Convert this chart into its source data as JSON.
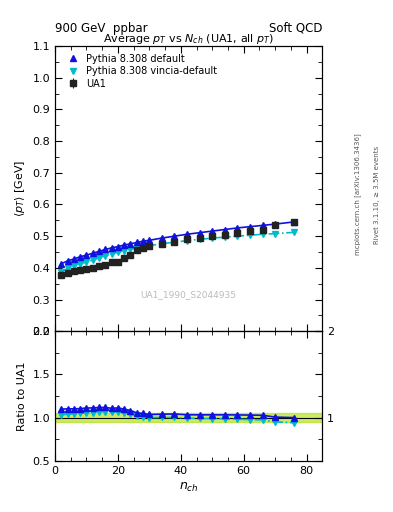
{
  "title_top_left": "900 GeV  ppbar",
  "title_top_right": "Soft QCD",
  "main_title": "Average p_{T} vs N_{ch} (UA1, all p_{T})",
  "ylabel_main": "⟨p_{T}⟩ [GeV]",
  "ylabel_ratio": "Ratio to UA1",
  "xlabel": "n_{ch}",
  "right_label_top": "Rivet 3.1.10, ≥ 3.5M events",
  "right_label_bot": "mcplots.cern.ch [arXiv:1306.3436]",
  "watermark": "UA1_1990_S2044935",
  "ua1_x": [
    2,
    4,
    6,
    8,
    10,
    12,
    14,
    16,
    18,
    20,
    22,
    24,
    26,
    28,
    30,
    34,
    38,
    42,
    46,
    50,
    54,
    58,
    62,
    66,
    70,
    76
  ],
  "ua1_y": [
    0.376,
    0.383,
    0.389,
    0.394,
    0.396,
    0.401,
    0.405,
    0.41,
    0.418,
    0.42,
    0.43,
    0.44,
    0.455,
    0.462,
    0.47,
    0.475,
    0.48,
    0.49,
    0.495,
    0.5,
    0.505,
    0.51,
    0.515,
    0.52,
    0.535,
    0.545
  ],
  "ua1_yerr": [
    0.005,
    0.004,
    0.004,
    0.004,
    0.004,
    0.004,
    0.004,
    0.004,
    0.004,
    0.004,
    0.004,
    0.004,
    0.004,
    0.004,
    0.004,
    0.004,
    0.004,
    0.004,
    0.004,
    0.004,
    0.004,
    0.004,
    0.004,
    0.004,
    0.004,
    0.006
  ],
  "py_def_x": [
    2,
    4,
    6,
    8,
    10,
    12,
    14,
    16,
    18,
    20,
    22,
    24,
    26,
    28,
    30,
    34,
    38,
    42,
    46,
    50,
    54,
    58,
    62,
    66,
    70,
    76
  ],
  "py_def_y": [
    0.413,
    0.422,
    0.428,
    0.435,
    0.44,
    0.446,
    0.452,
    0.458,
    0.463,
    0.467,
    0.472,
    0.476,
    0.48,
    0.484,
    0.487,
    0.494,
    0.5,
    0.506,
    0.511,
    0.516,
    0.521,
    0.526,
    0.53,
    0.534,
    0.538,
    0.545
  ],
  "py_vin_x": [
    2,
    4,
    6,
    8,
    10,
    12,
    14,
    16,
    18,
    20,
    22,
    24,
    26,
    28,
    30,
    34,
    38,
    42,
    46,
    50,
    54,
    58,
    62,
    66,
    70,
    76
  ],
  "py_vin_y": [
    0.388,
    0.398,
    0.406,
    0.413,
    0.418,
    0.424,
    0.432,
    0.438,
    0.444,
    0.449,
    0.454,
    0.458,
    0.463,
    0.467,
    0.47,
    0.476,
    0.481,
    0.486,
    0.49,
    0.494,
    0.497,
    0.5,
    0.503,
    0.506,
    0.508,
    0.512
  ],
  "ratio_py_def_y": [
    1.097,
    1.102,
    1.101,
    1.104,
    1.111,
    1.112,
    1.117,
    1.117,
    1.108,
    1.112,
    1.098,
    1.082,
    1.055,
    1.048,
    1.036,
    1.04,
    1.042,
    1.033,
    1.032,
    1.032,
    1.032,
    1.031,
    1.029,
    1.027,
    1.006,
    1.0
  ],
  "ratio_py_vin_y": [
    1.032,
    1.039,
    1.044,
    1.048,
    1.056,
    1.057,
    1.067,
    1.068,
    1.062,
    1.069,
    1.056,
    1.041,
    1.018,
    1.011,
    1.0,
    1.002,
    1.002,
    0.993,
    0.99,
    0.988,
    0.984,
    0.981,
    0.977,
    0.973,
    0.951,
    0.94
  ],
  "color_ua1": "#222222",
  "color_py_def": "#1111dd",
  "color_py_vin": "#00bbcc",
  "color_band": "#aadd00",
  "xlim": [
    0,
    85
  ],
  "ylim_main": [
    0.2,
    1.1
  ],
  "ylim_ratio": [
    0.5,
    2.0
  ],
  "yticks_main": [
    0.2,
    0.3,
    0.4,
    0.5,
    0.6,
    0.7,
    0.8,
    0.9,
    1.0,
    1.1
  ],
  "yticks_ratio": [
    0.5,
    1.0,
    1.5,
    2.0
  ],
  "xticks": [
    0,
    20,
    40,
    60,
    80
  ]
}
